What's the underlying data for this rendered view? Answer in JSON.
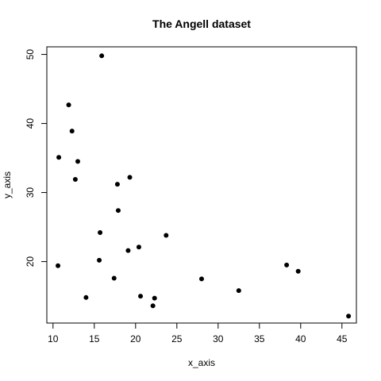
{
  "chart_data": {
    "type": "scatter",
    "title": "The Angell dataset",
    "xlabel": "x_axis",
    "ylabel": "y_axis",
    "xlim": [
      9.25,
      46.75
    ],
    "ylim": [
      11.1,
      51.1
    ],
    "xticks": [
      10,
      15,
      20,
      25,
      30,
      35,
      40,
      45
    ],
    "yticks": [
      20,
      30,
      40,
      50
    ],
    "grid": false,
    "points": [
      {
        "x": 15.9,
        "y": 49.8
      },
      {
        "x": 11.9,
        "y": 42.7
      },
      {
        "x": 12.3,
        "y": 38.9
      },
      {
        "x": 10.7,
        "y": 35.1
      },
      {
        "x": 13.0,
        "y": 34.5
      },
      {
        "x": 19.3,
        "y": 32.2
      },
      {
        "x": 12.7,
        "y": 31.9
      },
      {
        "x": 17.8,
        "y": 31.2
      },
      {
        "x": 17.9,
        "y": 27.4
      },
      {
        "x": 15.7,
        "y": 24.2
      },
      {
        "x": 23.7,
        "y": 23.8
      },
      {
        "x": 20.4,
        "y": 22.1
      },
      {
        "x": 19.1,
        "y": 21.6
      },
      {
        "x": 15.6,
        "y": 20.2
      },
      {
        "x": 10.6,
        "y": 19.4
      },
      {
        "x": 38.3,
        "y": 19.5
      },
      {
        "x": 39.7,
        "y": 18.6
      },
      {
        "x": 17.4,
        "y": 17.6
      },
      {
        "x": 28.0,
        "y": 17.5
      },
      {
        "x": 32.5,
        "y": 15.8
      },
      {
        "x": 20.6,
        "y": 15.0
      },
      {
        "x": 22.3,
        "y": 14.7
      },
      {
        "x": 14.0,
        "y": 14.8
      },
      {
        "x": 22.1,
        "y": 13.6
      },
      {
        "x": 45.8,
        "y": 12.1
      }
    ]
  }
}
